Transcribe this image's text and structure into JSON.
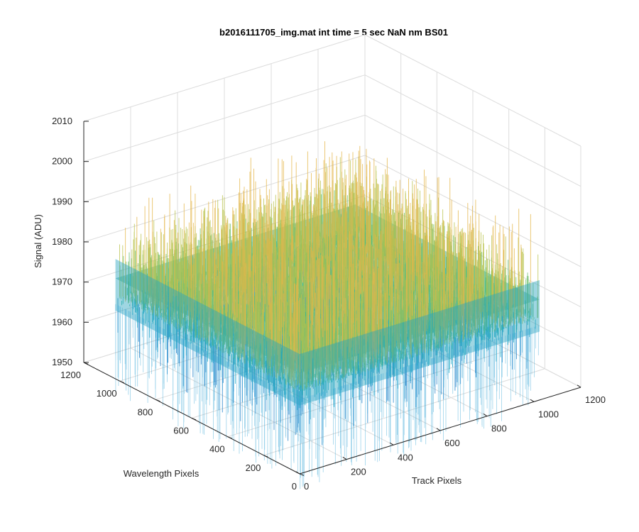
{
  "chart_data": {
    "type": "surface",
    "title": "b2016111705_img.mat int time = 5 sec  NaN nm BS01",
    "xlabel": "Track Pixels",
    "ylabel": "Wavelength Pixels",
    "zlabel": "Signal (ADU)",
    "xlim": [
      0,
      1200
    ],
    "ylim": [
      0,
      1200
    ],
    "zlim": [
      1950,
      2010
    ],
    "x_ticks": [
      0,
      200,
      400,
      600,
      800,
      1000,
      1200
    ],
    "y_ticks": [
      0,
      200,
      400,
      600,
      800,
      1000,
      1200
    ],
    "z_ticks": [
      1950,
      1960,
      1970,
      1980,
      1990,
      2000,
      2010
    ],
    "x_data_range": [
      0,
      1024
    ],
    "y_data_range": [
      0,
      1024
    ],
    "signal_mean": 1975,
    "signal_spread": 8,
    "colormap": [
      "#1f7fc8",
      "#14a6c4",
      "#22b5a0",
      "#6cbf6a",
      "#b8c24a",
      "#e4b64a"
    ],
    "grid": true,
    "view": "3d-default"
  }
}
